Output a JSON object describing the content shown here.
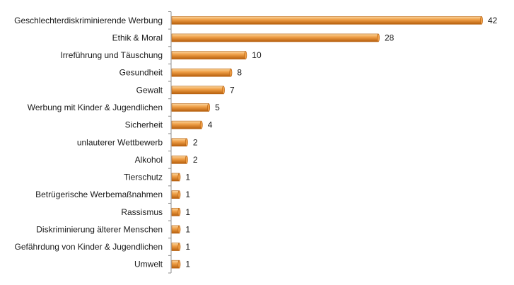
{
  "chart_data": {
    "type": "bar",
    "orientation": "horizontal",
    "categories": [
      "Geschlechterdiskriminierende Werbung",
      "Ethik & Moral",
      "Irreführung und Täuschung",
      "Gesundheit",
      "Gewalt",
      "Werbung mit Kinder & Jugendlichen",
      "Sicherheit",
      "unlauterer Wettbewerb",
      "Alkohol",
      "Tierschutz",
      "Betrügerische Werbemaßnahmen",
      "Rassismus",
      "Diskriminierung älterer Menschen",
      "Gefährdung von Kinder & Jugendlichen",
      "Umwelt"
    ],
    "values": [
      42,
      28,
      10,
      8,
      7,
      5,
      4,
      2,
      2,
      1,
      1,
      1,
      1,
      1,
      1
    ],
    "xlim": [
      0,
      42
    ],
    "grid": false,
    "legend": "none",
    "colors": {
      "bar_light": "#FAD7A0",
      "bar_mid": "#F0A048",
      "bar_dark": "#B65E0C",
      "axis": "#8c8c8c"
    }
  }
}
